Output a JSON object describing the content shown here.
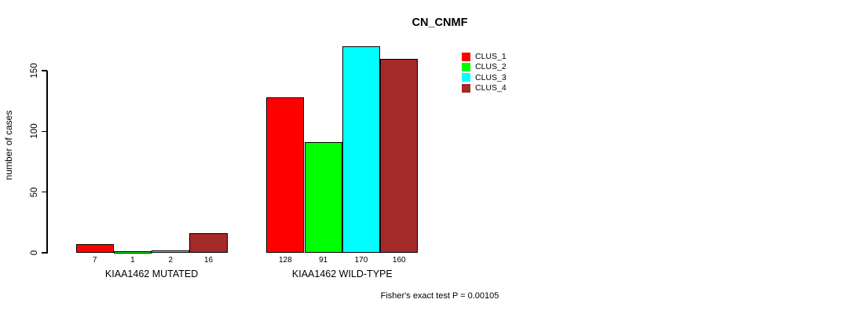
{
  "chart_data": {
    "type": "bar",
    "title": "CN_CNMF",
    "ylabel": "number of cases",
    "ylim": [
      0,
      175
    ],
    "yticks": [
      0,
      50,
      100,
      150
    ],
    "categories": [
      "KIAA1462 MUTATED",
      "KIAA1462 WILD-TYPE"
    ],
    "series": [
      {
        "name": "CLUS_1",
        "color": "#FF0000",
        "values": [
          7,
          128
        ]
      },
      {
        "name": "CLUS_2",
        "color": "#00FF00",
        "values": [
          1,
          91
        ]
      },
      {
        "name": "CLUS_3",
        "color": "#00FFFF",
        "values": [
          2,
          170
        ]
      },
      {
        "name": "CLUS_4",
        "color": "#A52A2A",
        "values": [
          16,
          160
        ]
      }
    ],
    "bar_value_labels": [
      [
        7,
        1,
        2,
        16
      ],
      [
        128,
        91,
        170,
        160
      ]
    ],
    "legend_position": "top-right",
    "grid": false,
    "annotation": "Fisher's exact test P = 0.00105"
  }
}
